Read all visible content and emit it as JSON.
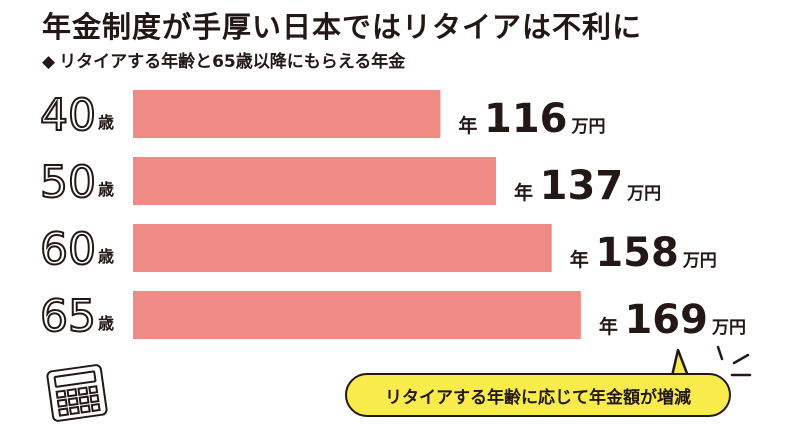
{
  "title": "年金制度が手厚い日本ではリタイアは不利に",
  "subtitle": "リタイアする年齢と65歳以降にもらえる年金",
  "diamond_glyph": "◆",
  "callout": "リタイアする年齢に応じて年金額が増減",
  "colors": {
    "bar": "#f08a84",
    "text": "#231815",
    "callout_bg": "#f8ec4c"
  },
  "icons": [
    "calculator-icon",
    "speech-tail-icon",
    "emphasis-lines-icon"
  ],
  "chart_data": {
    "type": "bar",
    "orientation": "horizontal",
    "categories": [
      "40",
      "50",
      "60",
      "65"
    ],
    "category_unit": "歳",
    "values": [
      116,
      137,
      158,
      169
    ],
    "value_prefix": "年",
    "value_unit": "万円",
    "xlim": [
      0,
      200
    ],
    "grid": false
  }
}
